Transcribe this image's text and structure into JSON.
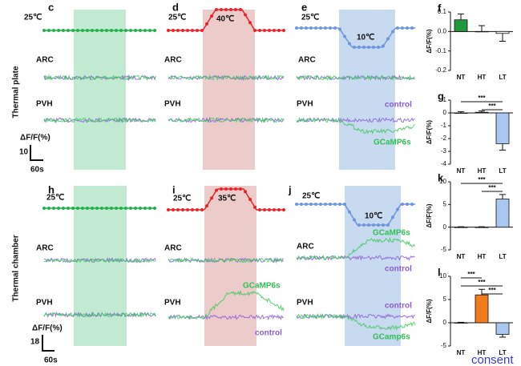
{
  "row_labels": [
    "Thermal plate",
    "Thermal chamber"
  ],
  "panels": [
    {
      "letter": "c",
      "temperature": "25℃",
      "regions": [
        "ARC",
        "PVH"
      ],
      "scale_bar": {
        "unit": "ΔF/F(%)",
        "amplitude": 10,
        "time": "60s"
      }
    },
    {
      "letter": "d",
      "temperature": "25℃",
      "peak": "40℃",
      "regions": [
        "ARC",
        "PVH"
      ]
    },
    {
      "letter": "e",
      "temperature": "25℃",
      "peak": "10℃",
      "regions": [
        "ARC",
        "PVH"
      ],
      "legend": [
        "control",
        "GCaMP6s"
      ]
    },
    {
      "letter": "h",
      "temperature": "25℃",
      "regions": [
        "ARC",
        "PVH"
      ],
      "scale_bar": {
        "unit": "ΔF/F(%)",
        "amplitude": 18,
        "time": "60s"
      }
    },
    {
      "letter": "i",
      "temperature": "25℃",
      "peak": "35℃",
      "regions": [
        "ARC",
        "PVH"
      ],
      "legend": [
        "GCaMP6s",
        "control"
      ]
    },
    {
      "letter": "j",
      "temperature": "25℃",
      "peak": "10℃",
      "regions": [
        "ARC",
        "PVH"
      ],
      "legend": [
        "GCaMP6s",
        "control",
        "control",
        "GCamp6s"
      ]
    }
  ],
  "bar_charts": [
    {
      "letter": "f",
      "type": "bar",
      "ylabel": "ΔF/F(%)",
      "categories": [
        "NT",
        "HT",
        "LT"
      ],
      "values": [
        0.06,
        0.0,
        -0.01
      ],
      "errors": [
        0.03,
        0.03,
        0.04
      ],
      "colors": [
        "#1f9a3a",
        "#ffffff",
        "#ffffff"
      ],
      "ylim": [
        -0.2,
        0.1
      ],
      "yticks": [
        -0.2,
        -0.1,
        {
          "value": 0,
          "label": "0.0"
        },
        0.1
      ],
      "significance": []
    },
    {
      "letter": "g",
      "type": "bar",
      "ylabel": "ΔF/F(%)",
      "categories": [
        "NT",
        "HT",
        "LT"
      ],
      "values": [
        0.0,
        0.05,
        -2.4
      ],
      "errors": [
        0.1,
        0.1,
        0.5
      ],
      "colors": [
        "#ffffff",
        "#ffffff",
        "#a9c8ef"
      ],
      "ylim": [
        -4,
        1
      ],
      "yticks": [
        -4,
        -3,
        -2,
        -1,
        0,
        1
      ],
      "significance": [
        "***",
        "***"
      ]
    },
    {
      "letter": "k",
      "type": "bar",
      "ylabel": "ΔF/F(%)",
      "categories": [
        "NT",
        "HT",
        "LT"
      ],
      "values": [
        0,
        0,
        6.2
      ],
      "errors": [
        0.1,
        0.1,
        1.0
      ],
      "colors": [
        "#ffffff",
        "#ffffff",
        "#a9c8ef"
      ],
      "ylim": [
        -5,
        10
      ],
      "yticks": [
        -5,
        0,
        5,
        10
      ],
      "significance": [
        "***",
        "***"
      ]
    },
    {
      "letter": "l",
      "type": "bar",
      "ylabel": "ΔF/F(%)",
      "categories": [
        "NT",
        "HT",
        "LT"
      ],
      "values": [
        0,
        6,
        -2.5
      ],
      "errors": [
        0.1,
        1.2,
        0.6
      ],
      "colors": [
        "#ffffff",
        "#f07b1d",
        "#a9c8ef"
      ],
      "ylim": [
        -5,
        10
      ],
      "yticks": [
        -5,
        0,
        5,
        10
      ],
      "significance": [
        "***",
        "***",
        "***"
      ]
    }
  ],
  "footer": "consent"
}
